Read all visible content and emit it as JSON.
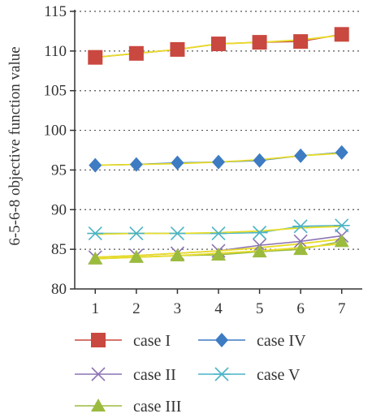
{
  "chart_data": {
    "type": "line",
    "x": [
      1,
      2,
      3,
      4,
      5,
      6,
      7
    ],
    "ylabel": "6-5-6-8 objective function value",
    "xlabel": "",
    "ylim": [
      80,
      115
    ],
    "yticks": [
      80,
      85,
      90,
      95,
      100,
      105,
      110,
      115
    ],
    "xticks": [
      1,
      2,
      3,
      4,
      5,
      6,
      7
    ],
    "grid": "horizontal dotted",
    "legend_position": "bottom",
    "series": [
      {
        "name": "case I",
        "marker": "square",
        "color": "#c9483f",
        "values": [
          109.2,
          109.7,
          110.2,
          110.9,
          111.1,
          111.2,
          112.1
        ],
        "fit": [
          109.2,
          109.7,
          110.2,
          110.9,
          111.1,
          111.4,
          112.0
        ]
      },
      {
        "name": "case II",
        "marker": "x",
        "color": "#8b73b3",
        "values": [
          84.0,
          84.2,
          84.5,
          84.8,
          85.5,
          86.0,
          86.7
        ],
        "fit": [
          84.0,
          84.2,
          84.5,
          84.8,
          85.2,
          85.7,
          86.3
        ]
      },
      {
        "name": "case III",
        "marker": "triangle",
        "color": "#9bbb3f",
        "values": [
          83.8,
          84.0,
          84.2,
          84.3,
          84.7,
          85.0,
          86.0
        ],
        "fit": [
          83.8,
          84.0,
          84.2,
          84.5,
          84.8,
          85.2,
          85.7
        ]
      },
      {
        "name": "case IV",
        "marker": "diamond",
        "color": "#3d7cc3",
        "values": [
          95.6,
          95.7,
          95.9,
          96.0,
          96.2,
          96.8,
          97.2
        ],
        "fit": [
          95.6,
          95.7,
          95.8,
          96.0,
          96.3,
          96.8,
          97.1
        ]
      },
      {
        "name": "case V",
        "marker": "star",
        "color": "#4ab4c6",
        "values": [
          87.0,
          87.0,
          87.0,
          87.0,
          87.1,
          87.9,
          88.0
        ],
        "fit": [
          86.9,
          87.0,
          87.0,
          87.1,
          87.3,
          87.7,
          87.9
        ]
      }
    ],
    "fit_line_color": "#e8dc28",
    "legend": [
      {
        "series": 0,
        "label": "case I"
      },
      {
        "series": 3,
        "label": "case IV"
      },
      {
        "series": 1,
        "label": "case II"
      },
      {
        "series": 4,
        "label": "case V"
      },
      {
        "series": 2,
        "label": "case III"
      }
    ]
  }
}
